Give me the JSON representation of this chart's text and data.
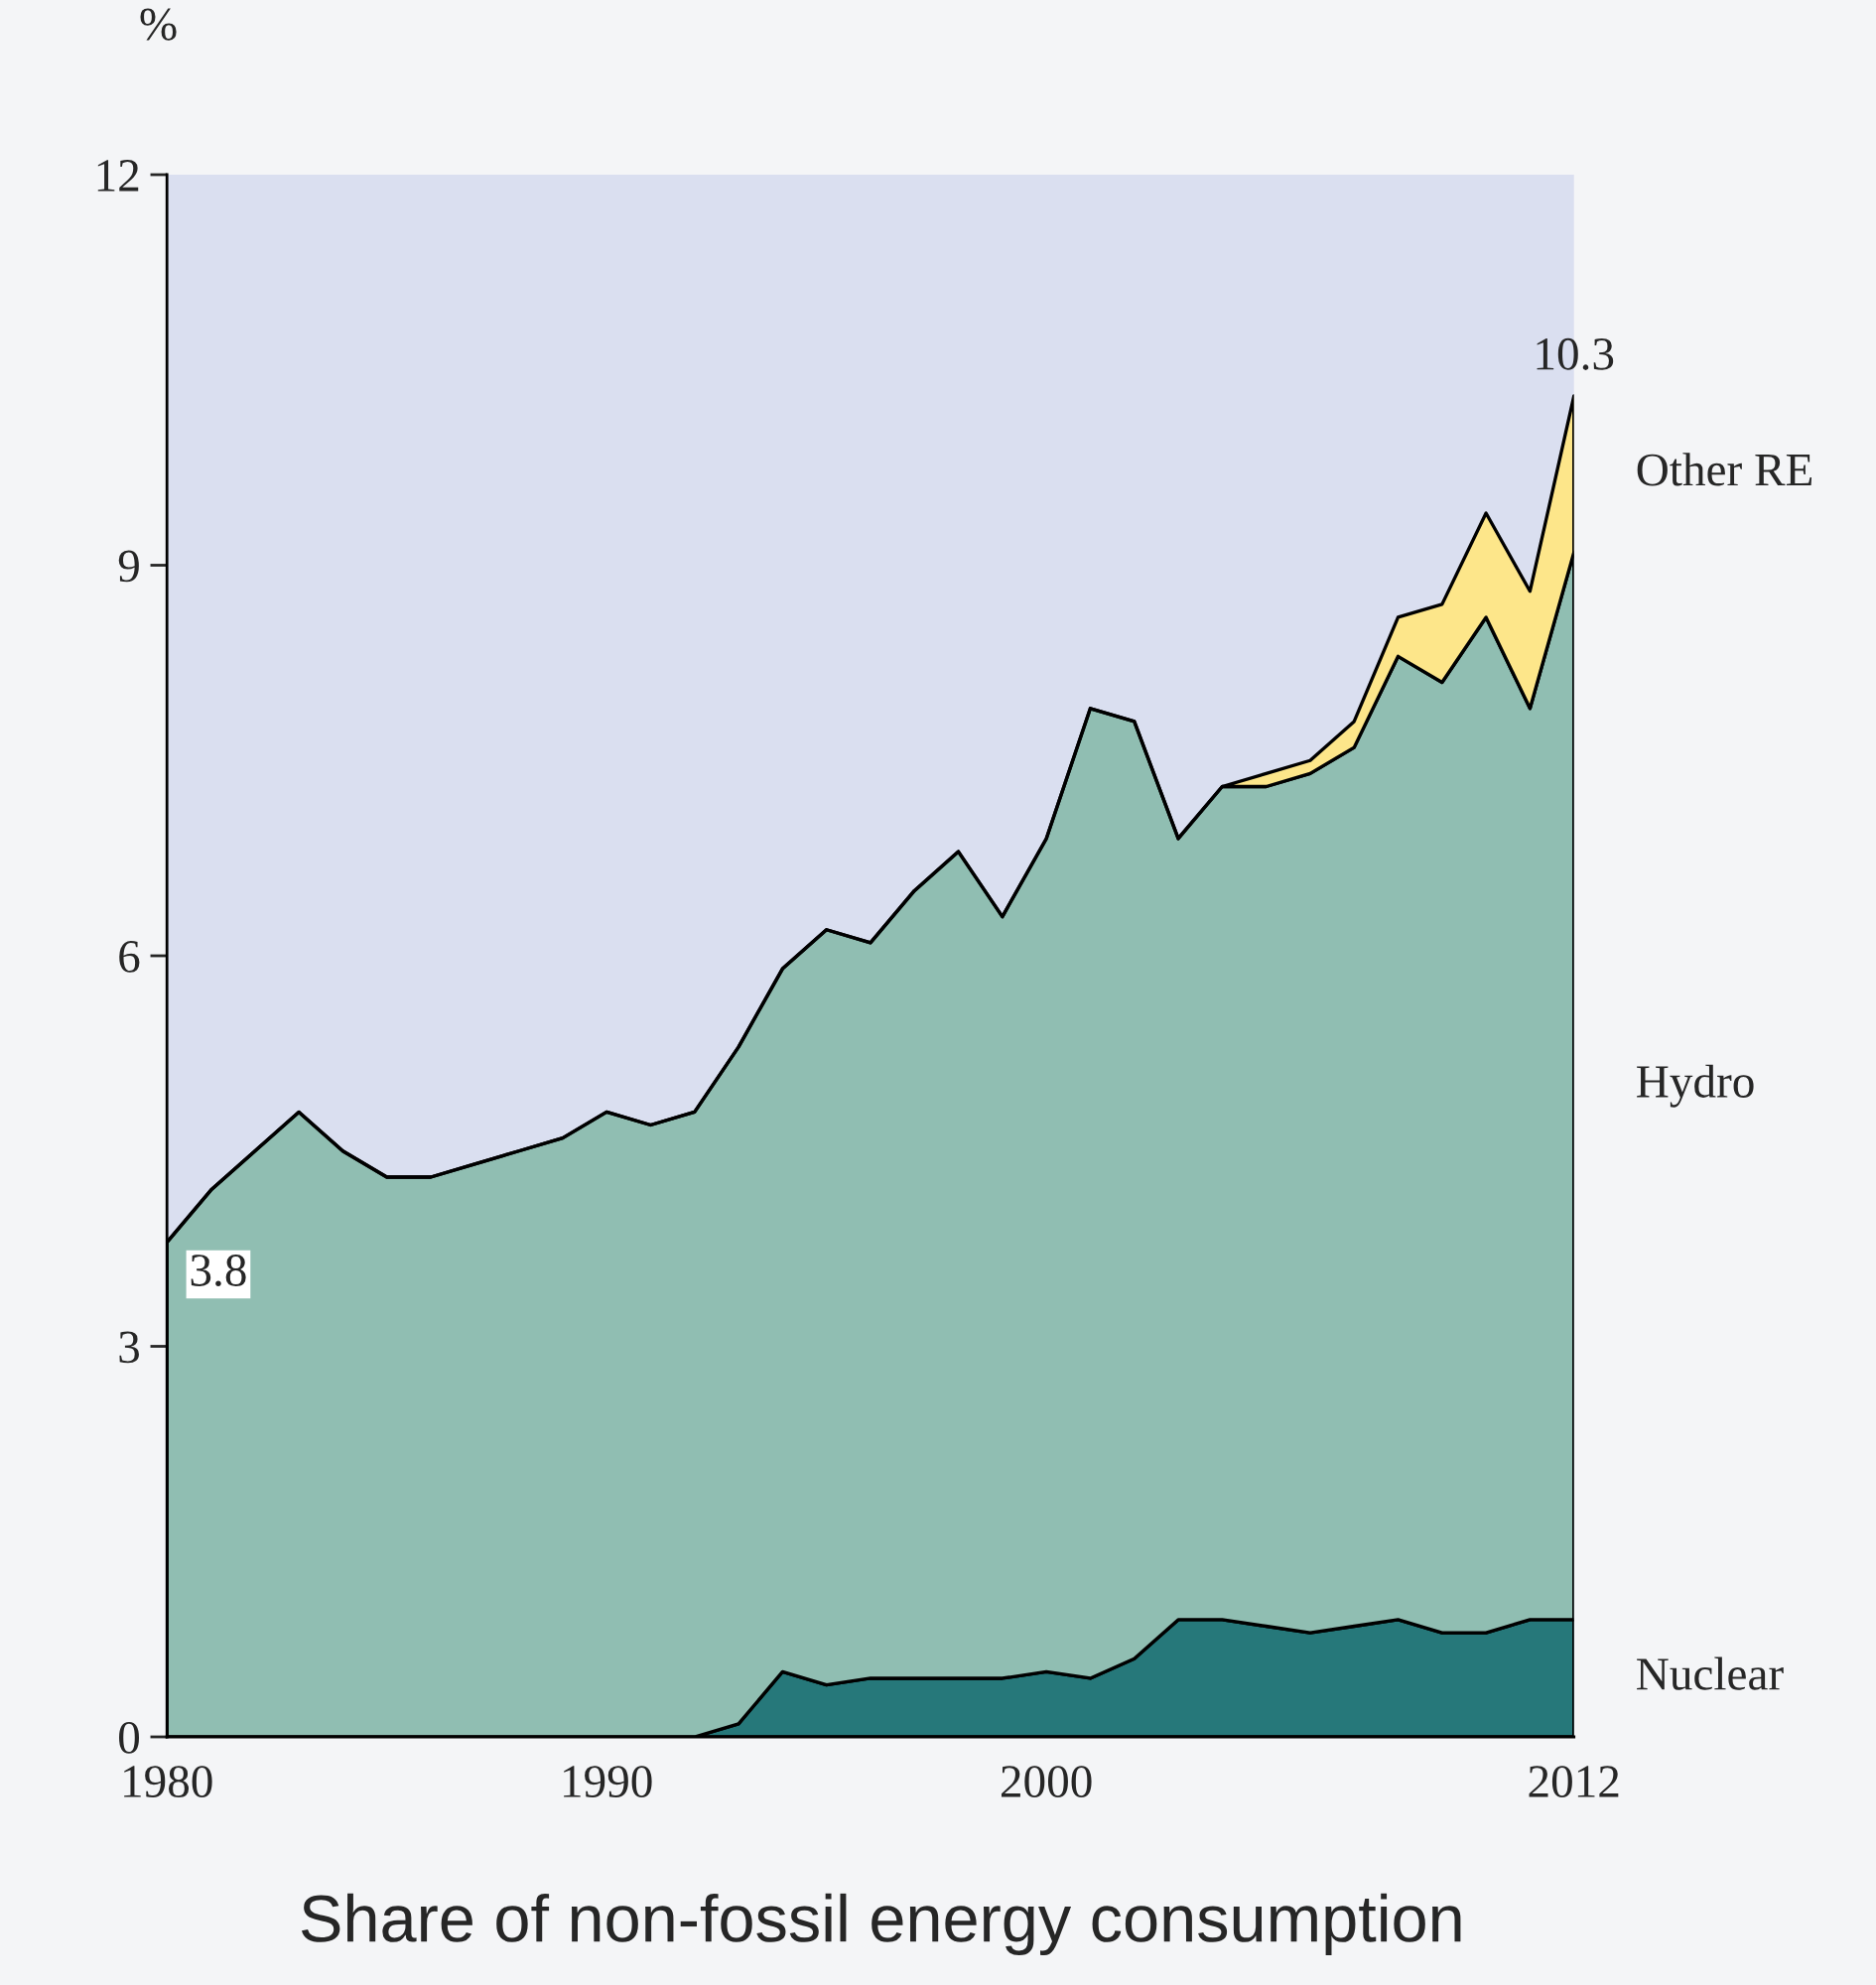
{
  "chart_data": {
    "type": "area",
    "stacked": true,
    "title": "Share of non-fossil energy consumption",
    "ylabel": "%",
    "x": [
      1980,
      1981,
      1982,
      1983,
      1984,
      1985,
      1986,
      1987,
      1988,
      1989,
      1990,
      1991,
      1992,
      1993,
      1994,
      1995,
      1996,
      1997,
      1998,
      1999,
      2000,
      2001,
      2002,
      2003,
      2004,
      2005,
      2006,
      2007,
      2008,
      2009,
      2010,
      2011,
      2012
    ],
    "series": [
      {
        "name": "Nuclear",
        "color": "#26787a",
        "values": [
          0,
          0,
          0,
          0,
          0,
          0,
          0,
          0,
          0,
          0,
          0,
          0,
          0,
          0.1,
          0.5,
          0.4,
          0.45,
          0.45,
          0.45,
          0.45,
          0.5,
          0.45,
          0.6,
          0.9,
          0.9,
          0.85,
          0.8,
          0.85,
          0.9,
          0.8,
          0.8,
          0.9,
          0.9
        ]
      },
      {
        "name": "Hydro",
        "color": "#90beb2",
        "values": [
          3.8,
          4.2,
          4.5,
          4.8,
          4.5,
          4.3,
          4.3,
          4.4,
          4.5,
          4.6,
          4.8,
          4.7,
          4.8,
          5.2,
          5.4,
          5.8,
          5.65,
          6.05,
          6.35,
          5.85,
          6.4,
          7.45,
          7.2,
          6.0,
          6.4,
          6.45,
          6.6,
          6.75,
          7.4,
          7.3,
          7.8,
          7.0,
          8.2
        ]
      },
      {
        "name": "Other RE",
        "color": "#fde68a",
        "values": [
          0,
          0,
          0,
          0,
          0,
          0,
          0,
          0,
          0,
          0,
          0,
          0,
          0,
          0,
          0,
          0,
          0,
          0,
          0,
          0,
          0,
          0,
          0,
          0,
          0,
          0.1,
          0.1,
          0.2,
          0.3,
          0.6,
          0.8,
          0.9,
          1.2
        ]
      }
    ],
    "xlim": [
      1980,
      2012
    ],
    "xticks": [
      1980,
      1990,
      2000,
      2012
    ],
    "ylim": [
      0,
      12
    ],
    "yticks": [
      0,
      3,
      6,
      9,
      12
    ],
    "grid": false,
    "legend": false,
    "annotations": [
      {
        "text": "3.8",
        "x": 1980,
        "y": 3.8
      },
      {
        "text": "10.3",
        "x": 2012,
        "y": 10.3
      }
    ]
  }
}
